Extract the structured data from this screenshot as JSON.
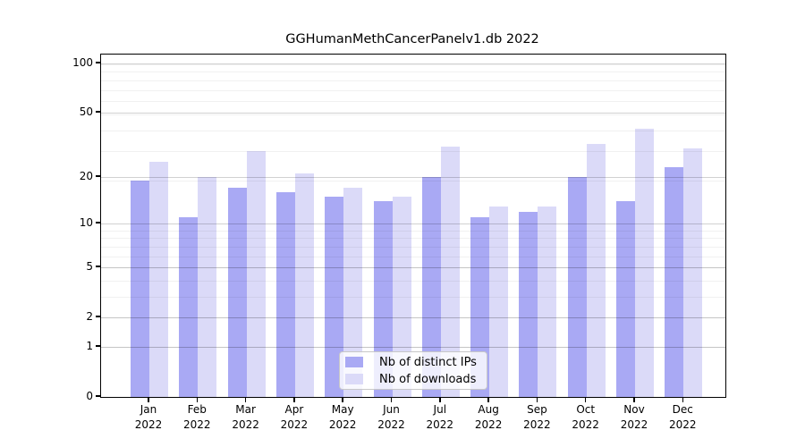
{
  "chart_data": {
    "type": "bar",
    "title": "GGHumanMethCancerPanelv1.db 2022",
    "year_label": "2022",
    "categories": [
      "Jan",
      "Feb",
      "Mar",
      "Apr",
      "May",
      "Jun",
      "Jul",
      "Aug",
      "Sep",
      "Oct",
      "Nov",
      "Dec"
    ],
    "series": [
      {
        "name": "Nb of distinct IPs",
        "color": "#a9a9f4",
        "values": [
          19,
          11,
          17,
          16,
          15,
          14,
          20,
          11,
          12,
          20,
          14,
          23
        ]
      },
      {
        "name": "Nb of downloads",
        "color": "#dbdaf8",
        "values": [
          25,
          20,
          29,
          21,
          17,
          15,
          31,
          13,
          13,
          32,
          40,
          30
        ]
      }
    ],
    "xlabel": "",
    "ylabel": "",
    "y_ticks": [
      0,
      1,
      2,
      5,
      10,
      20,
      50,
      100
    ],
    "minor_grid_values": [
      1,
      2,
      3,
      4,
      5,
      6,
      7,
      8,
      9,
      19,
      29,
      39,
      49,
      59,
      69,
      79,
      89,
      99
    ],
    "scale": "log10(value+1)",
    "ylim": [
      0,
      113.3
    ],
    "grid": true,
    "legend_position": "inside-bottom-center",
    "colors": {
      "grid_major": "rgba(0,0,0,0.18)",
      "grid_minor": "rgba(0,0,0,0.055)",
      "frame": "#000000",
      "text": "#000000",
      "legend_border": "#c8c8c8",
      "legend_bg": "rgba(255,255,255,0.8)"
    }
  }
}
